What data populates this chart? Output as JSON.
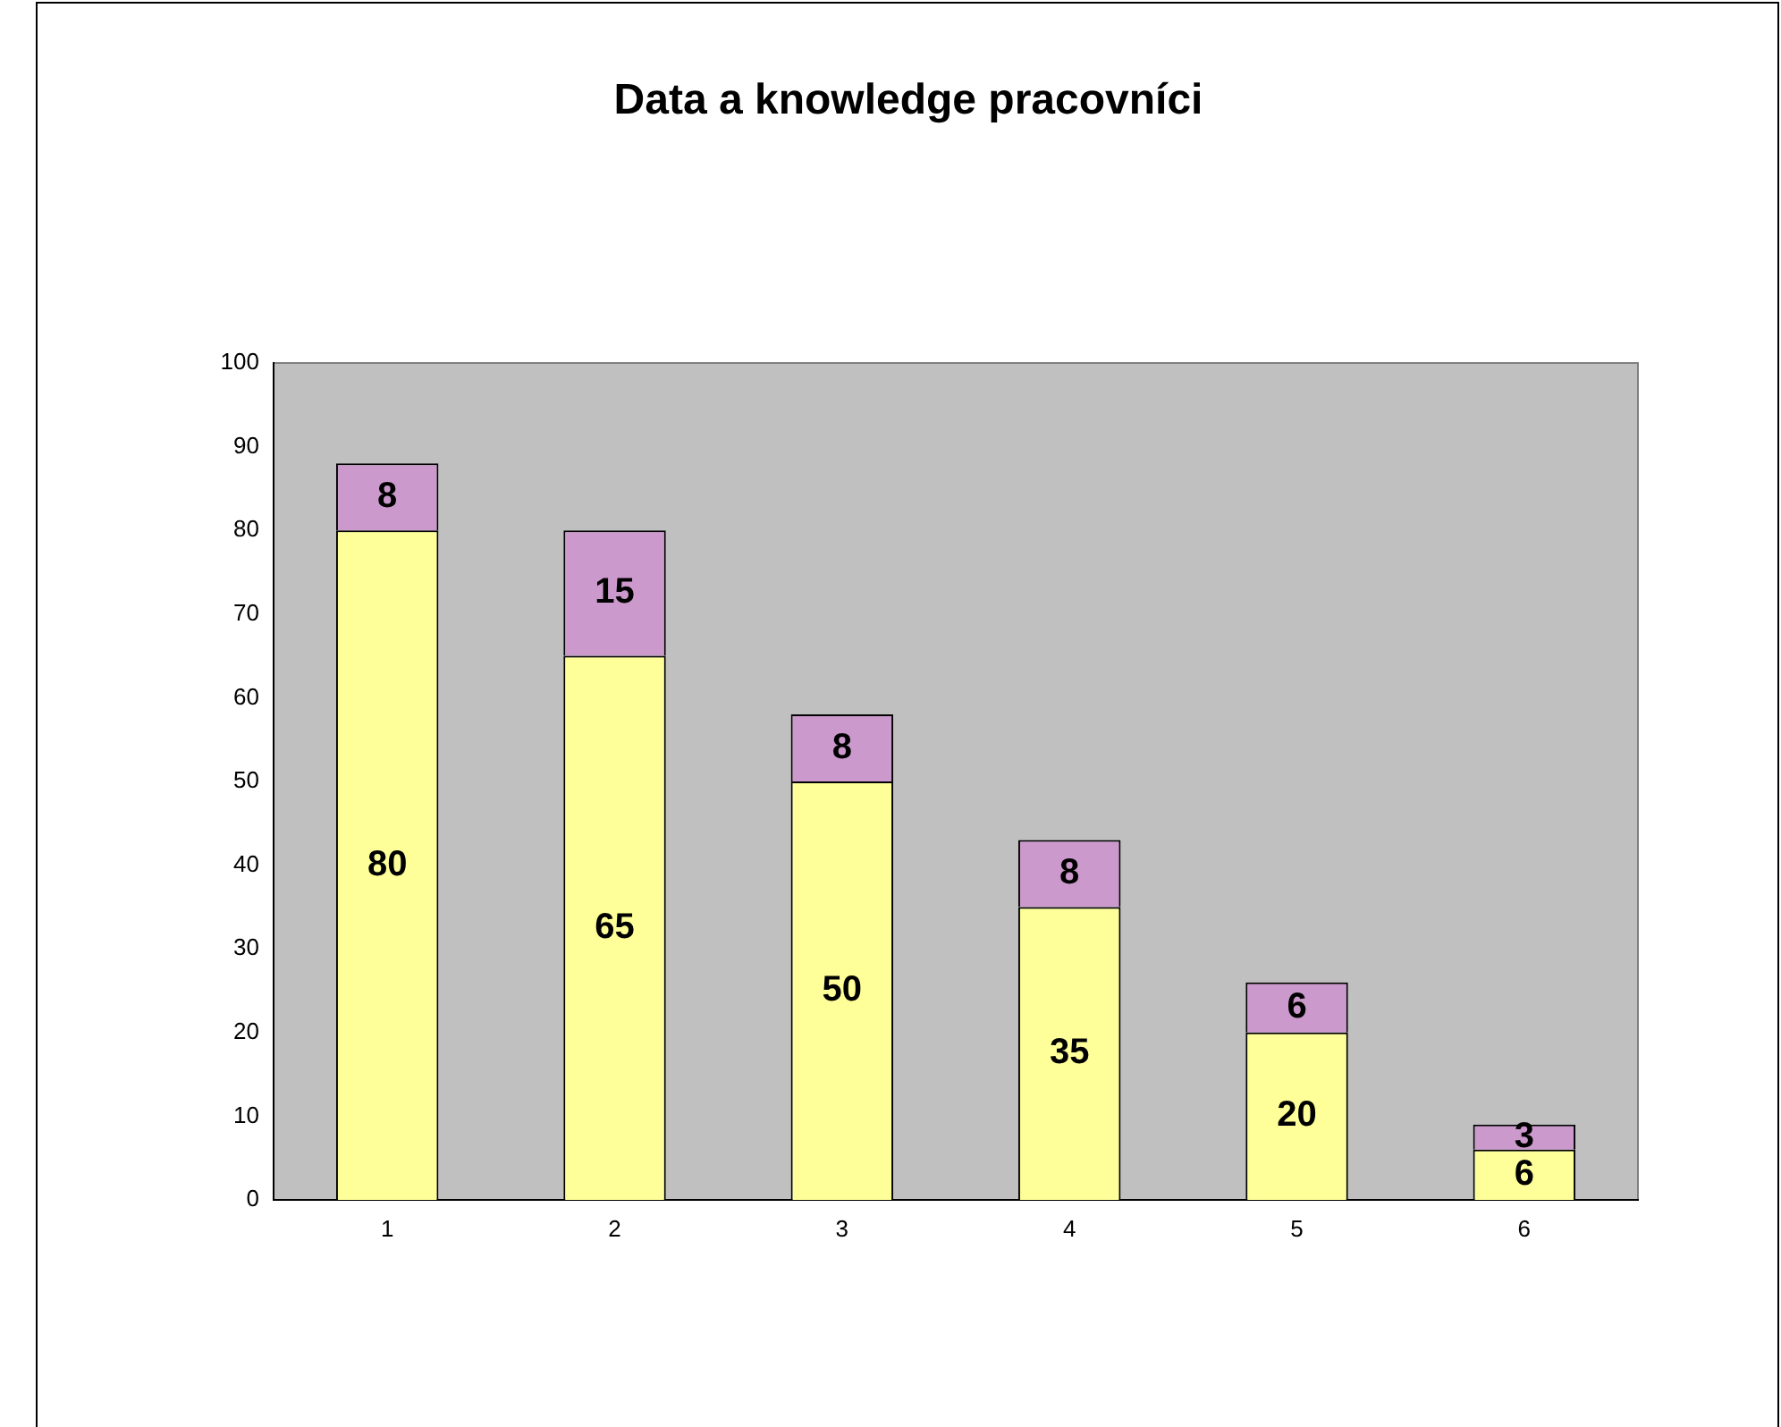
{
  "chart_data": {
    "type": "bar",
    "title": "Data a knowledge pracovníci",
    "categories": [
      "1",
      "2",
      "3",
      "4",
      "5",
      "6"
    ],
    "stacked": true,
    "data_labels": true,
    "grid": false,
    "legend": false,
    "series": [
      {
        "color": "#ffff99",
        "values": [
          80,
          65,
          50,
          35,
          20,
          6
        ]
      },
      {
        "color": "#cc99cc",
        "values": [
          8,
          15,
          8,
          8,
          6,
          3
        ]
      }
    ],
    "ylim": [
      0,
      100
    ],
    "yticks": [
      0,
      10,
      20,
      30,
      40,
      50,
      60,
      70,
      80,
      90,
      100
    ]
  }
}
